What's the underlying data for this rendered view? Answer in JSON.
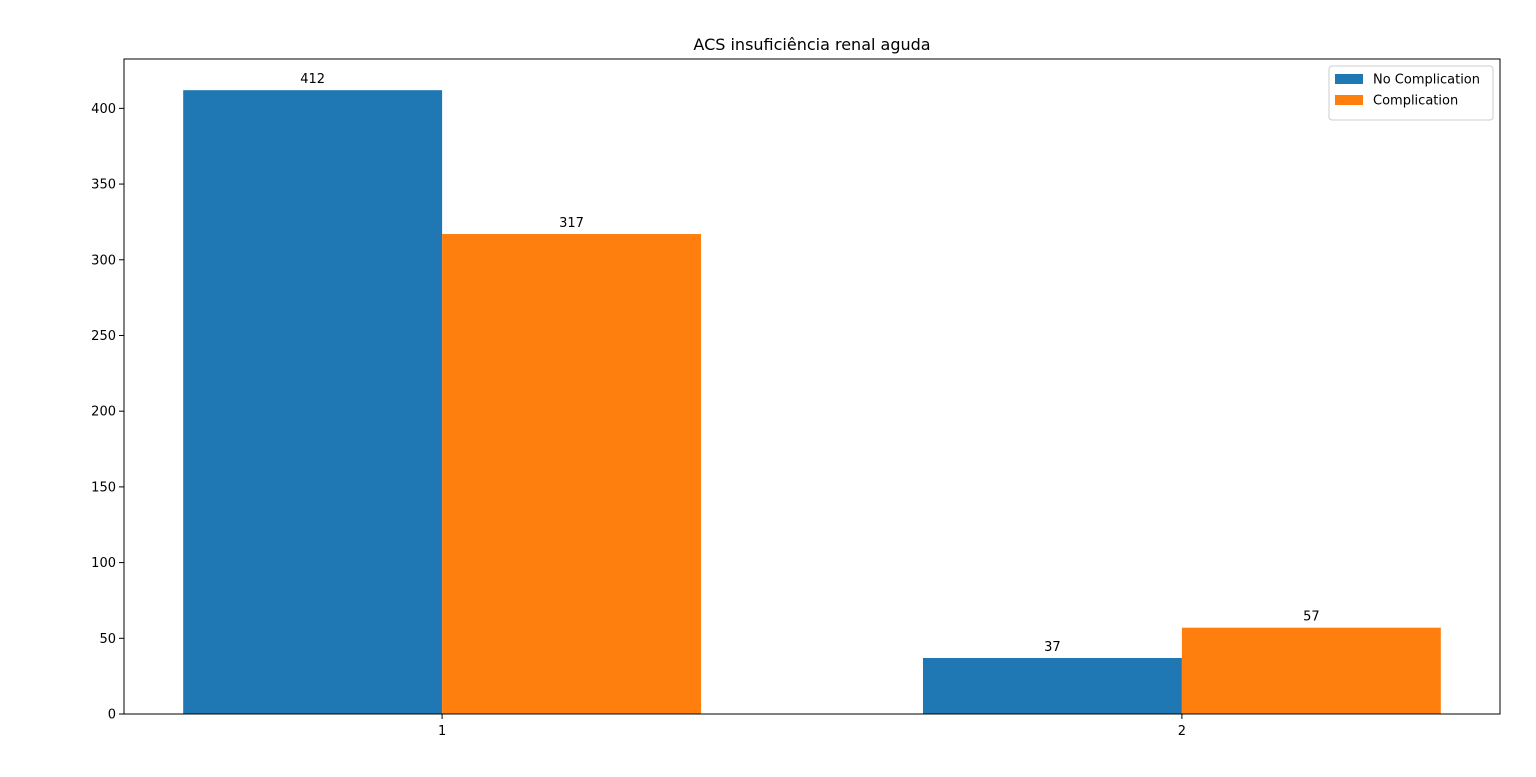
{
  "chart_data": {
    "type": "bar",
    "title": "ACS insuficiência renal aguda",
    "xlabel": "",
    "ylabel": "",
    "categories": [
      "1",
      "2"
    ],
    "series": [
      {
        "name": "No Complication",
        "color": "#1f77b4",
        "values": [
          412,
          37
        ]
      },
      {
        "name": "Complication",
        "color": "#ff7f0e",
        "values": [
          317,
          57
        ]
      }
    ],
    "ylim": [
      0,
      432.6
    ],
    "yticks": [
      0,
      50,
      100,
      150,
      200,
      250,
      300,
      350,
      400
    ],
    "grid": false,
    "legend": "top-right"
  }
}
